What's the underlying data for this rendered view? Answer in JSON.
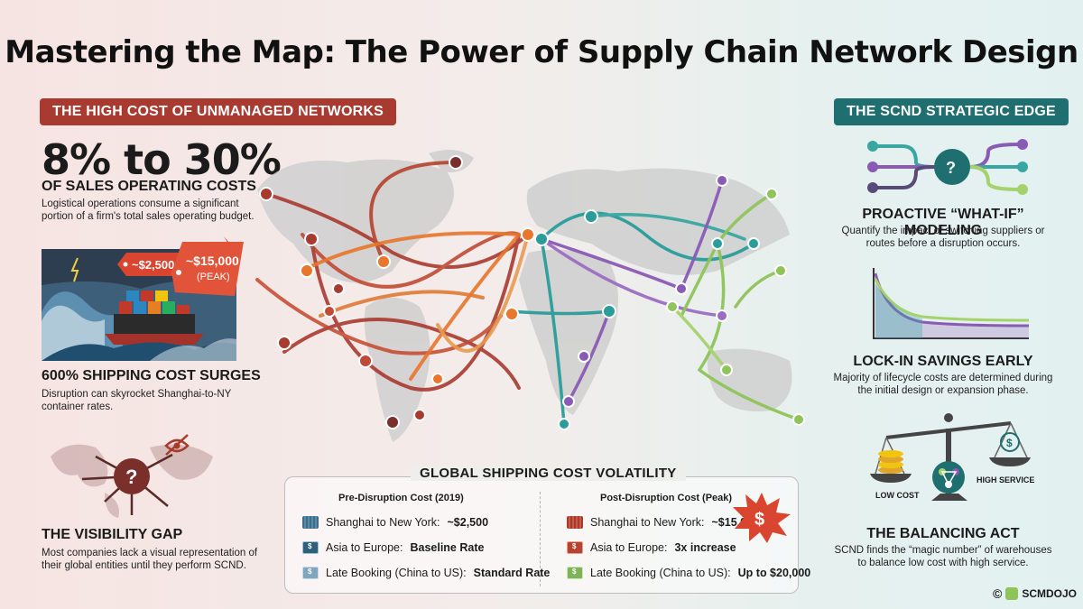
{
  "title": "Mastering the Map: The Power of Supply Chain Network Design",
  "left": {
    "banner": "THE HIGH COST OF UNMANAGED NETWORKS",
    "stat": "8% to 30%",
    "stat_sub": "OF SALES OPERATING COSTS",
    "stat_desc": "Logistical operations consume a significant portion of a firm's total sales operating budget.",
    "tag_low": "~$2,500",
    "tag_high": "~$15,000",
    "tag_high_note": "(PEAK)",
    "surge_heading": "600% SHIPPING COST SURGES",
    "surge_desc": "Disruption can skyrocket Shanghai-to-NY container rates.",
    "visibility_heading": "THE VISIBILITY GAP",
    "visibility_desc": "Most companies lack a visual representation of their global entities until they perform SCND."
  },
  "right": {
    "banner": "THE SCND STRATEGIC EDGE",
    "whatif_heading": "PROACTIVE “WHAT-IF” MODELING",
    "whatif_desc": "Quantify the impact of switching suppliers or routes before a disruption occurs.",
    "lock_heading": "LOCK-IN SAVINGS EARLY",
    "lock_desc": "Majority of lifecycle costs are determined during the initial design or expansion phase.",
    "balance_low": "LOW COST",
    "balance_high": "HIGH SERVICE",
    "balance_heading": "THE BALANCING ACT",
    "balance_desc": "SCND finds the “magic number” of warehouses to balance low cost with high service."
  },
  "table": {
    "title": "GLOBAL SHIPPING COST VOLATILITY",
    "pre_header": "Pre-Disruption Cost (2019)",
    "post_header": "Post-Disruption Cost (Peak)",
    "pre_rows": [
      {
        "label": "Shanghai to New York: ",
        "value": "~$2,500"
      },
      {
        "label": "Asia to Europe: ",
        "value": "Baseline Rate"
      },
      {
        "label": "Late Booking (China to US): ",
        "value": "Standard Rate"
      }
    ],
    "post_rows": [
      {
        "label": "Shanghai to New York: ",
        "value": "~$15,000"
      },
      {
        "label": "Asia to Europe: ",
        "value": "3x increase"
      },
      {
        "label": "Late Booking (China to US): ",
        "value": "Up to $20,000"
      }
    ]
  },
  "footer": {
    "brand": "SCMDOJO"
  },
  "colors": {
    "red": "#a93a30",
    "teal": "#1f6f70",
    "orange": "#e8762c",
    "purple": "#8a5bb5",
    "green": "#8fc45a"
  }
}
